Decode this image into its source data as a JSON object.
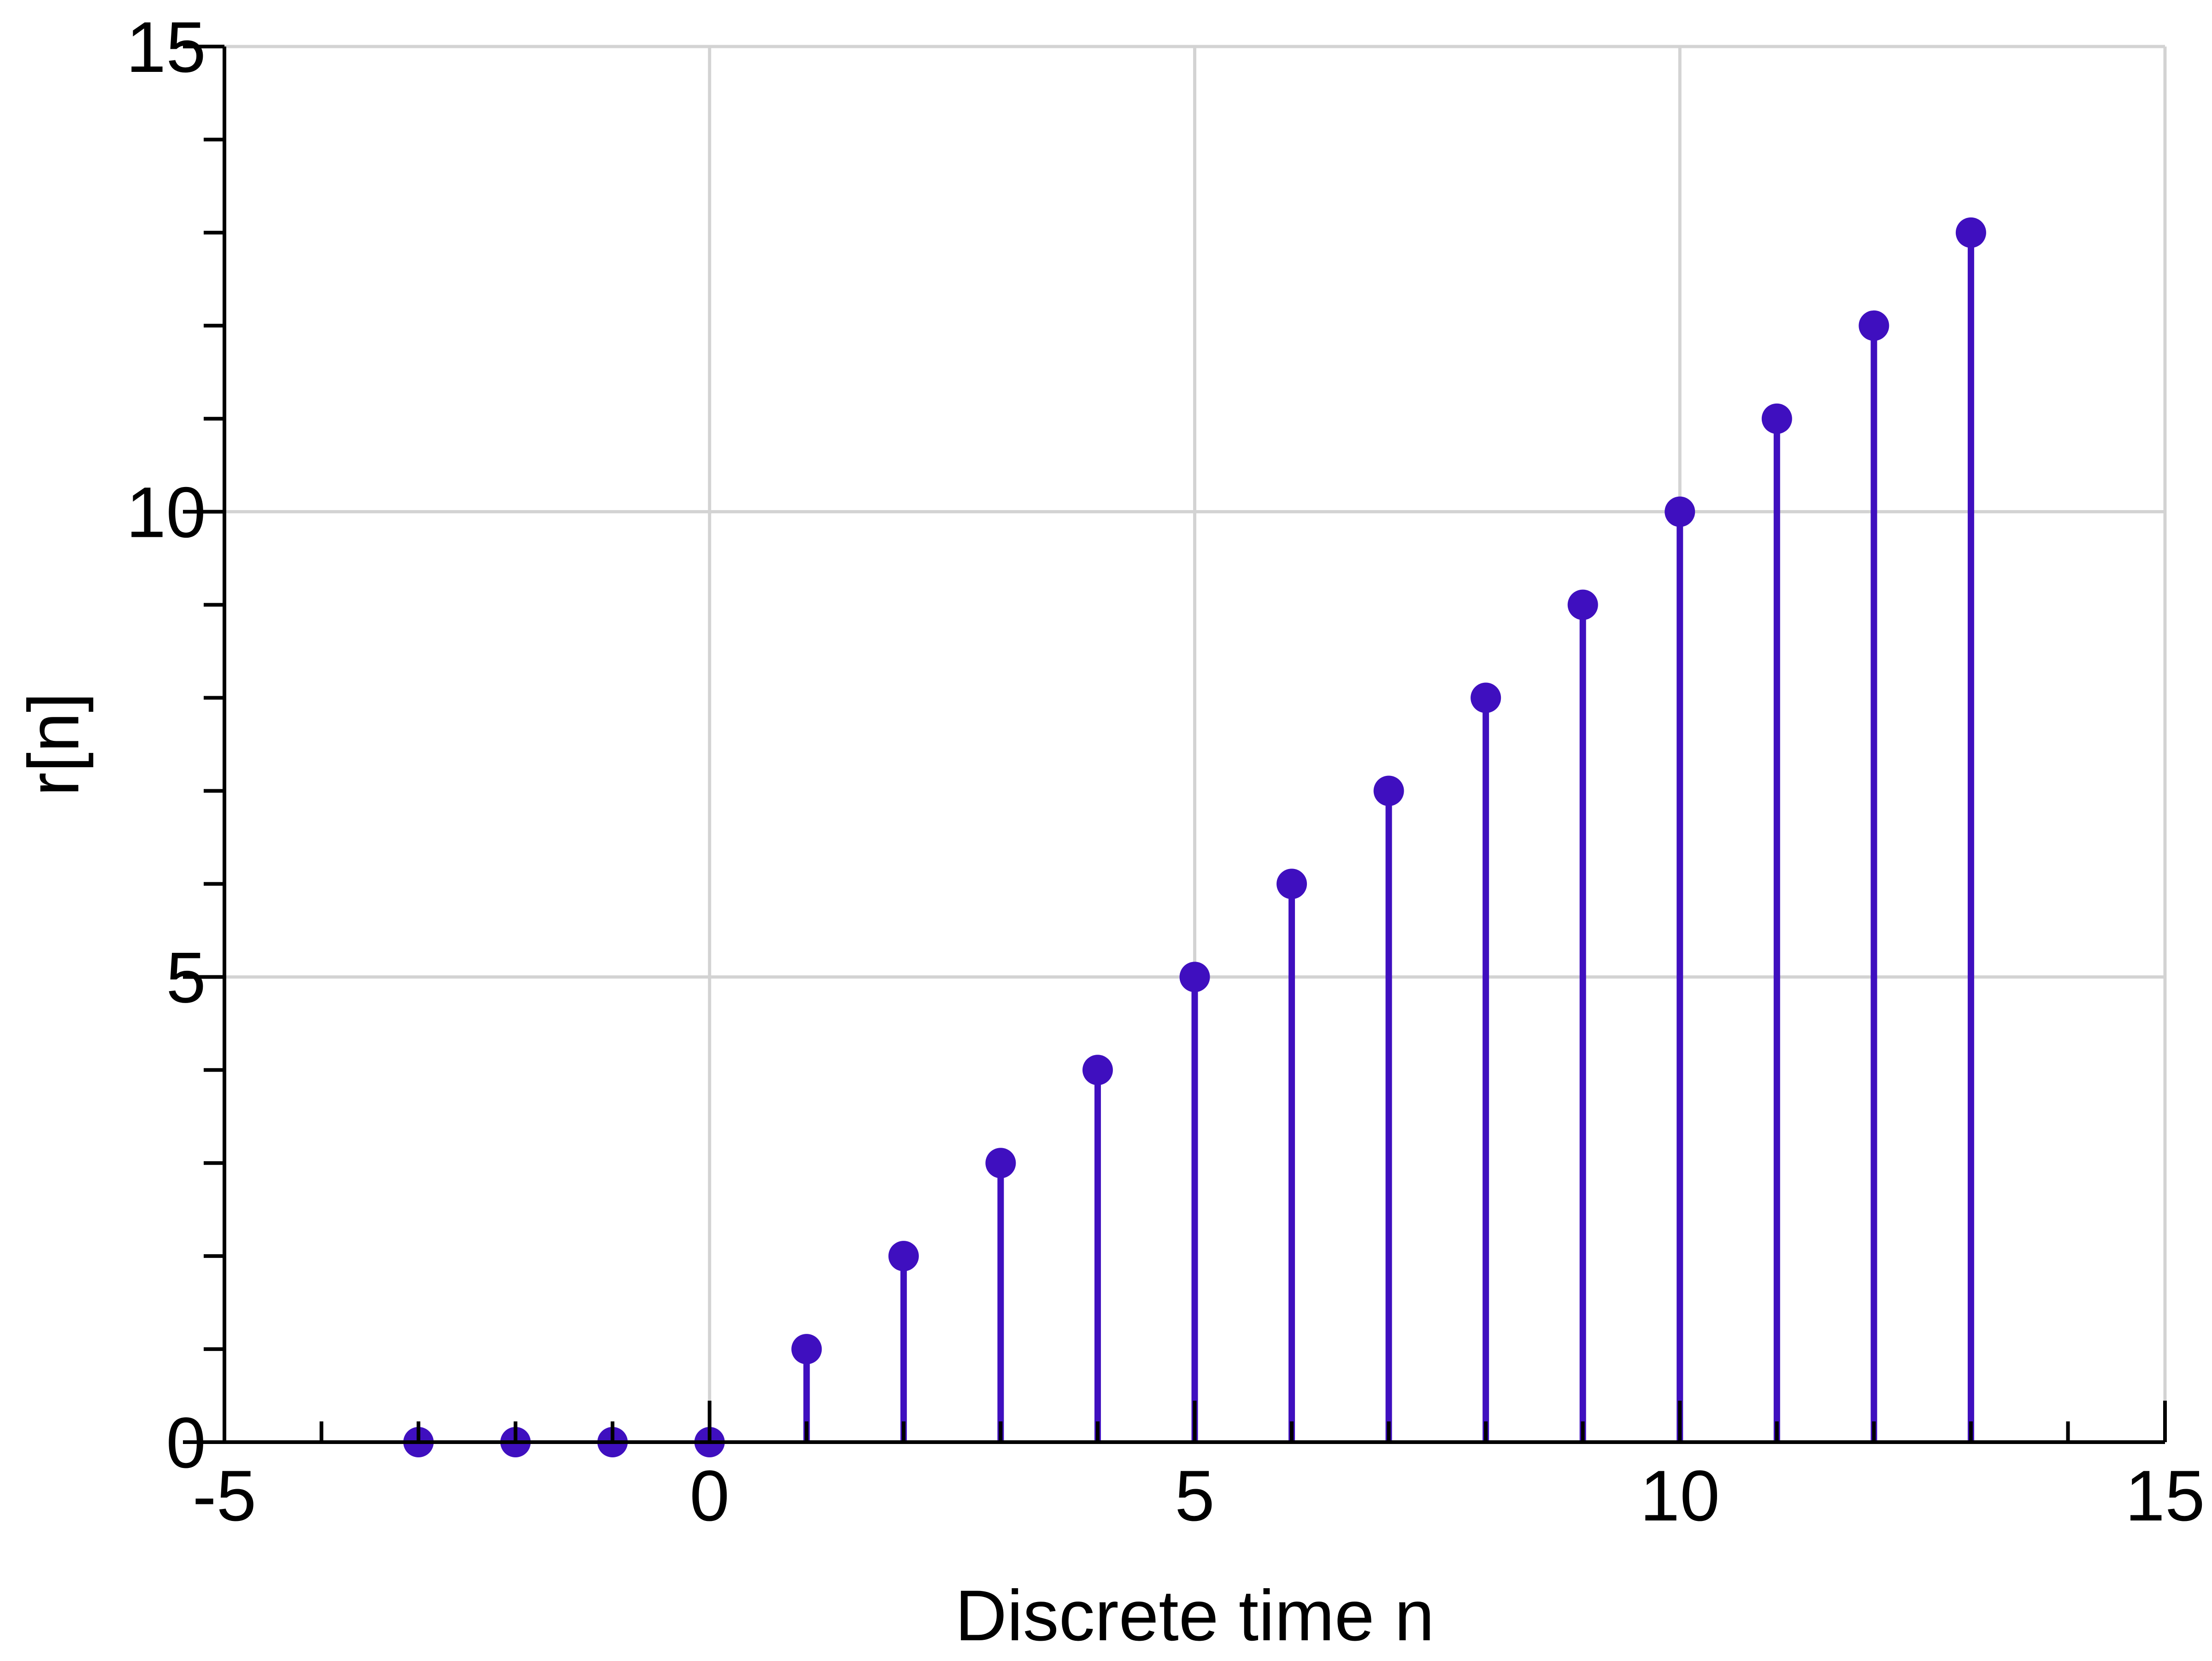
{
  "chart_data": {
    "type": "stem",
    "title": "",
    "xlabel": "Discrete time n",
    "ylabel": "r[n]",
    "xlim": [
      -5,
      15
    ],
    "ylim": [
      0,
      15
    ],
    "x_major_ticks": [
      -5,
      0,
      5,
      10,
      15
    ],
    "y_major_ticks": [
      0,
      5,
      10,
      15
    ],
    "x_tick_labels": [
      "-5",
      "0",
      "5",
      "10",
      "15"
    ],
    "y_tick_labels": [
      "0",
      "5",
      "10",
      "15"
    ],
    "x_minor_step": 1,
    "y_minor_step": 1,
    "grid": true,
    "legend": "none",
    "series": [
      {
        "x": [
          -3,
          -2,
          -1,
          0,
          1,
          2,
          3,
          4,
          5,
          6,
          7,
          8,
          9,
          10,
          11,
          12,
          13
        ],
        "y": [
          0,
          0,
          0,
          0,
          1,
          2,
          3,
          4,
          5,
          6,
          7,
          8,
          9,
          10,
          11,
          12,
          13
        ],
        "color": "#3f0fbf"
      }
    ],
    "colors": {
      "stem": "#3f0fbf",
      "grid": "#d3d3d3",
      "axis": "#000000"
    }
  }
}
